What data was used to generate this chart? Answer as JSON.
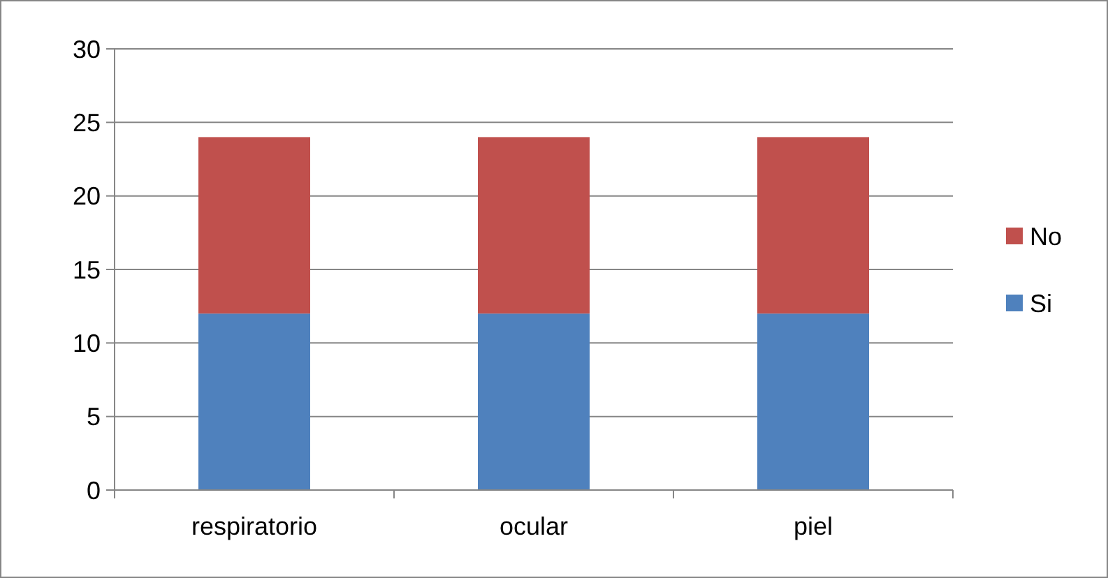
{
  "chart_data": {
    "type": "bar",
    "stacked": true,
    "categories": [
      "respiratorio",
      "ocular",
      "piel"
    ],
    "series": [
      {
        "name": "Si",
        "color": "#4f81bd",
        "values": [
          12,
          12,
          12
        ]
      },
      {
        "name": "No",
        "color": "#c0504d",
        "values": [
          12,
          12,
          12
        ]
      }
    ],
    "ylim": [
      0,
      30
    ],
    "yticks": [
      0,
      5,
      10,
      15,
      20,
      25,
      30
    ],
    "grid": "y",
    "legend": "right"
  }
}
